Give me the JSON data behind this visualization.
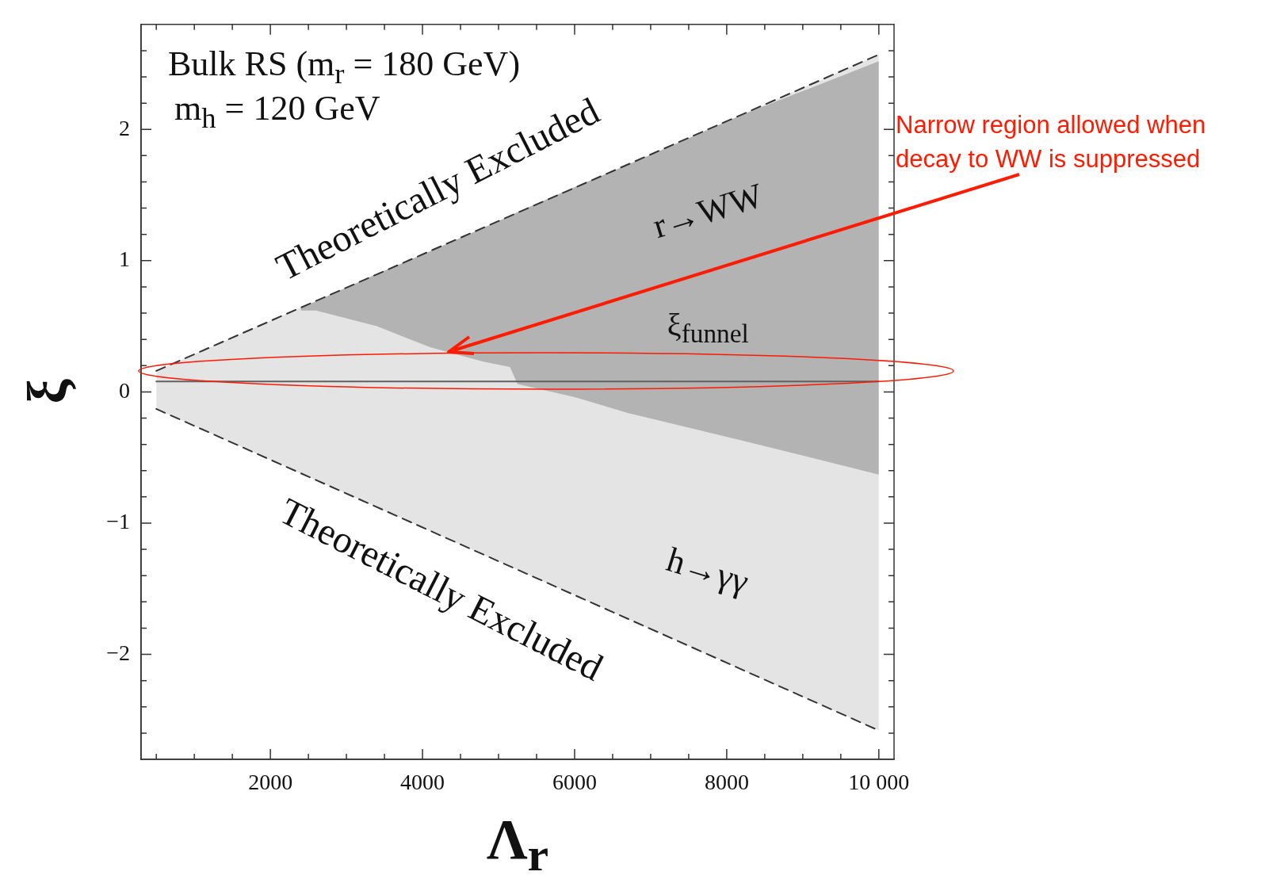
{
  "chart_data": {
    "type": "line",
    "title": "Bulk RS (m$_{r}$ = 180 GeV)",
    "subtitle": "m$_{h}$ = 120 GeV",
    "xlabel": "Λ$_{r}$",
    "ylabel": "ξ",
    "xlim": [
      300,
      10200
    ],
    "ylim": [
      -2.8,
      2.8
    ],
    "xticks": [
      {
        "value": 500,
        "label": null
      },
      {
        "value": 1000,
        "label": null
      },
      {
        "value": 1500,
        "label": null
      },
      2000,
      {
        "value": 2500,
        "label": null
      },
      {
        "value": 3000,
        "label": null
      },
      {
        "value": 3500,
        "label": null
      },
      4000,
      {
        "value": 4500,
        "label": null
      },
      {
        "value": 5000,
        "label": null
      },
      {
        "value": 5500,
        "label": null
      },
      6000,
      {
        "value": 6500,
        "label": null
      },
      {
        "value": 7000,
        "label": null
      },
      {
        "value": 7500,
        "label": null
      },
      8000,
      {
        "value": 8500,
        "label": null
      },
      {
        "value": 9000,
        "label": null
      },
      {
        "value": 9500,
        "label": null
      },
      {
        "value": 10000,
        "label": "10 000"
      }
    ],
    "yticks": [
      {
        "value": -2.6,
        "label": null
      },
      {
        "value": -2.4,
        "label": null
      },
      {
        "value": -2.2,
        "label": null
      },
      {
        "value": -2,
        "label": "−2"
      },
      {
        "value": -1.8,
        "label": null
      },
      {
        "value": -1.6,
        "label": null
      },
      {
        "value": -1.4,
        "label": null
      },
      {
        "value": -1.2,
        "label": null
      },
      {
        "value": -1,
        "label": "−1"
      },
      {
        "value": -0.8,
        "label": null
      },
      {
        "value": -0.6,
        "label": null
      },
      {
        "value": -0.4,
        "label": null
      },
      {
        "value": -0.2,
        "label": null
      },
      0,
      {
        "value": 0.2,
        "label": null
      },
      {
        "value": 0.4,
        "label": null
      },
      {
        "value": 0.6,
        "label": null
      },
      {
        "value": 0.8,
        "label": null
      },
      1,
      {
        "value": 1.2,
        "label": null
      },
      {
        "value": 1.4,
        "label": null
      },
      {
        "value": 1.6,
        "label": null
      },
      {
        "value": 1.8,
        "label": null
      },
      2,
      {
        "value": 2.2,
        "label": null
      },
      {
        "value": 2.4,
        "label": null
      },
      {
        "value": 2.6,
        "label": null
      }
    ],
    "grid": false,
    "legend": false,
    "series": [
      {
        "color": "#e4e4e4",
        "x": [
          500,
          10000
        ],
        "values": [
          null,
          null
        ],
        "lower": [
          -0.13,
          -2.58
        ],
        "upper": [
          0.16,
          2.57
        ]
      },
      {
        "color": "#b3b3b3",
        "x": [
          2400,
          2600,
          3400,
          4100,
          4800,
          5150,
          5250,
          6000,
          6700,
          8200,
          10000
        ],
        "values": [
          null,
          null,
          null,
          null,
          null,
          null,
          null,
          null,
          null,
          null,
          null
        ],
        "lower": [
          0.62,
          0.62,
          0.5,
          0.34,
          0.23,
          0.19,
          0.06,
          -0.04,
          -0.16,
          -0.37,
          -0.63
        ],
        "upper": [
          0.64,
          0.69,
          0.9,
          1.07,
          1.25,
          1.34,
          1.37,
          1.56,
          1.73,
          2.11,
          2.52
        ]
      },
      {
        "color": "#606060",
        "x": [
          500,
          10000
        ],
        "values": [
          0.08,
          0.08
        ]
      },
      {
        "color": "#333333",
        "line_style": "dashed",
        "x": [
          500,
          10000
        ],
        "values": [
          0.16,
          2.57
        ]
      },
      {
        "color": "#333333",
        "line_style": "dashed",
        "x": [
          500,
          10000
        ],
        "values": [
          -0.13,
          -2.58
        ]
      }
    ],
    "annotations": [
      "Theoretically Excluded",
      "Theoretically Excluded",
      "r→WW",
      "h→γγ",
      "ξ$_{funnel}$",
      "Narrow region allowed when decay to WW is suppressed"
    ]
  }
}
